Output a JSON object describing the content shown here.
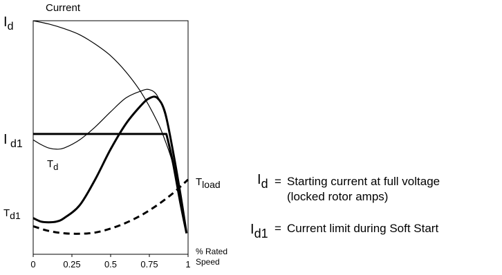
{
  "chart_data": {
    "type": "line",
    "ylabel": "Current",
    "xlabel_line1": "% Rated",
    "xlabel_line2": "Speed",
    "xlim": [
      0,
      1
    ],
    "ylim": [
      0,
      1
    ],
    "x_ticks": [
      "0",
      "0.25",
      "0.5",
      "0.75",
      "1"
    ],
    "x_tick_values": [
      0,
      0.25,
      0.5,
      0.75,
      1
    ],
    "series": [
      {
        "key": "Id_curve",
        "style": "thin",
        "x": [
          0,
          0.1,
          0.2,
          0.3,
          0.4,
          0.5,
          0.6,
          0.7,
          0.8,
          0.85,
          0.9,
          0.95,
          0.99
        ],
        "y": [
          1.0,
          0.986,
          0.966,
          0.94,
          0.9,
          0.85,
          0.78,
          0.69,
          0.57,
          0.49,
          0.39,
          0.23,
          0.09
        ]
      },
      {
        "key": "Td_curve",
        "style": "thin",
        "x": [
          0,
          0.05,
          0.1,
          0.15,
          0.2,
          0.3,
          0.4,
          0.5,
          0.6,
          0.7,
          0.75,
          0.8,
          0.85,
          0.9,
          0.95,
          0.99
        ],
        "y": [
          0.49,
          0.47,
          0.455,
          0.45,
          0.455,
          0.49,
          0.545,
          0.61,
          0.67,
          0.7,
          0.705,
          0.68,
          0.6,
          0.45,
          0.25,
          0.09
        ]
      },
      {
        "key": "Id1_limit",
        "style": "thick",
        "x": [
          0,
          0.2,
          0.4,
          0.6,
          0.8,
          0.86,
          0.9,
          0.95,
          0.99
        ],
        "y": [
          0.515,
          0.515,
          0.515,
          0.515,
          0.515,
          0.515,
          0.4,
          0.22,
          0.09
        ]
      },
      {
        "key": "Td1_curve",
        "style": "thick",
        "x": [
          0,
          0.05,
          0.1,
          0.15,
          0.2,
          0.3,
          0.4,
          0.5,
          0.6,
          0.7,
          0.75,
          0.8,
          0.85,
          0.9,
          0.95,
          0.99
        ],
        "y": [
          0.155,
          0.14,
          0.137,
          0.14,
          0.155,
          0.21,
          0.32,
          0.45,
          0.56,
          0.64,
          0.668,
          0.67,
          0.61,
          0.45,
          0.26,
          0.09
        ]
      },
      {
        "key": "Tload_curve",
        "style": "dashed",
        "x": [
          0,
          0.1,
          0.2,
          0.3,
          0.4,
          0.5,
          0.6,
          0.7,
          0.8,
          0.9,
          1.0
        ],
        "y": [
          0.12,
          0.1,
          0.09,
          0.088,
          0.093,
          0.11,
          0.135,
          0.168,
          0.21,
          0.26,
          0.32
        ]
      }
    ],
    "labels": {
      "id_main": "I",
      "id_sub": "d",
      "id1_main": "I",
      "id1_sub": "d1",
      "td_main": "T",
      "td_sub": "d",
      "td1_main": "T",
      "td1_sub": "d1",
      "tload_main": "T",
      "tload_sub": "load"
    },
    "legend": {
      "id_main": "I",
      "id_sub": "d",
      "id_eq": "=",
      "id_text": "Starting current at full voltage",
      "id_text2": "(locked rotor amps)",
      "id1_main": "I",
      "id1_sub": "d1",
      "id1_eq": "=",
      "id1_text": "Current limit during Soft Start"
    }
  }
}
